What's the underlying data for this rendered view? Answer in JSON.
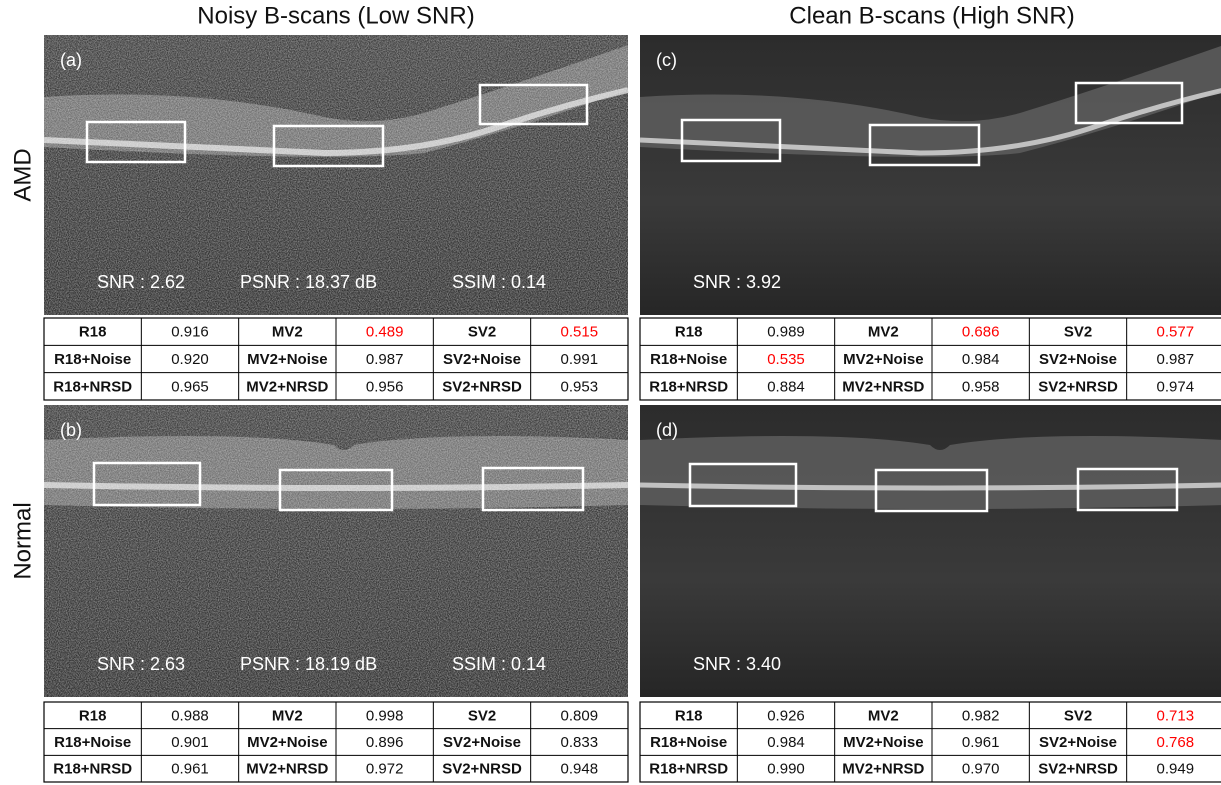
{
  "columns": [
    "Noisy B-scans (Low SNR)",
    "Clean B-scans (High SNR)"
  ],
  "rows": [
    "AMD",
    "Normal"
  ],
  "highlight_color": "#ff0000",
  "panels": [
    {
      "label": "(a)",
      "metrics": [
        "SNR : 2.62",
        "PSNR : 18.37 dB",
        "SSIM  : 0.14"
      ],
      "table": [
        [
          "R18",
          "0.916",
          "MV2",
          "0.489",
          "SV2",
          "0.515"
        ],
        [
          "R18+Noise",
          "0.920",
          "MV2+Noise",
          "0.987",
          "SV2+Noise",
          "0.991"
        ],
        [
          "R18+NRSD",
          "0.965",
          "MV2+NRSD",
          "0.956",
          "SV2+NRSD",
          "0.953"
        ]
      ],
      "highlighted_cells": [
        [
          0,
          3
        ],
        [
          0,
          5
        ]
      ]
    },
    {
      "label": "(b)",
      "metrics": [
        "SNR : 2.63",
        "PSNR : 18.19 dB",
        "SSIM  : 0.14"
      ],
      "table": [
        [
          "R18",
          "0.988",
          "MV2",
          "0.998",
          "SV2",
          "0.809"
        ],
        [
          "R18+Noise",
          "0.901",
          "MV2+Noise",
          "0.896",
          "SV2+Noise",
          "0.833"
        ],
        [
          "R18+NRSD",
          "0.961",
          "MV2+NRSD",
          "0.972",
          "SV2+NRSD",
          "0.948"
        ]
      ]
    },
    {
      "label": "(c)",
      "metrics": [
        "SNR : 3.92"
      ],
      "table": [
        [
          "R18",
          "0.989",
          "MV2",
          "0.686",
          "SV2",
          "0.577"
        ],
        [
          "R18+Noise",
          "0.535",
          "MV2+Noise",
          "0.984",
          "SV2+Noise",
          "0.987"
        ],
        [
          "R18+NRSD",
          "0.884",
          "MV2+NRSD",
          "0.958",
          "SV2+NRSD",
          "0.974"
        ]
      ],
      "highlighted_cells": [
        [
          0,
          3
        ],
        [
          0,
          5
        ],
        [
          1,
          1
        ]
      ]
    },
    {
      "label": "(d)",
      "metrics": [
        "SNR : 3.40"
      ],
      "table": [
        [
          "R18",
          "0.926",
          "MV2",
          "0.982",
          "SV2",
          "0.713"
        ],
        [
          "R18+Noise",
          "0.984",
          "MV2+Noise",
          "0.961",
          "SV2+Noise",
          "0.768"
        ],
        [
          "R18+NRSD",
          "0.990",
          "MV2+NRSD",
          "0.970",
          "SV2+NRSD",
          "0.949"
        ]
      ],
      "highlighted_cells": [
        [
          0,
          5
        ],
        [
          1,
          5
        ]
      ]
    }
  ]
}
